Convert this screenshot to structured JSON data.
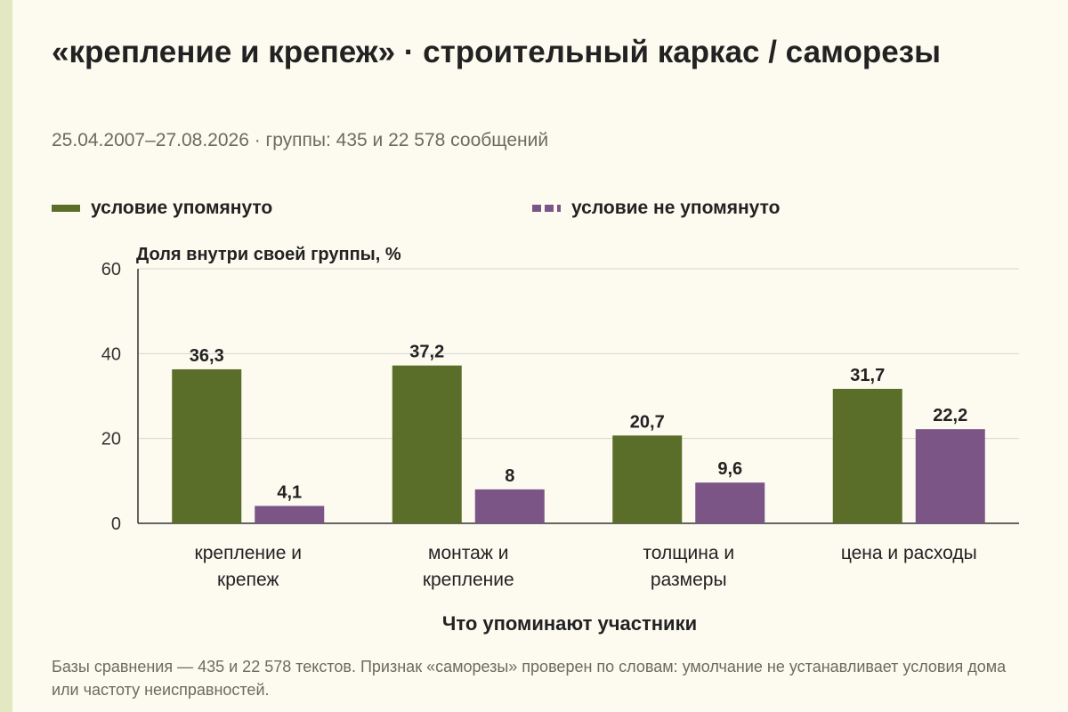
{
  "title": "«крепление и крепеж» · строительный каркас / саморезы",
  "subtitle": "25.04.2007–27.08.2026 · группы: 435 и 22 578 сообщений",
  "footnote": "Базы сравнения — 435 и 22 578 текстов. Признак «саморезы» проверен по словам: умолчание не устанавливает условия дома или частоту неисправностей.",
  "colors": {
    "background": "#fdfbf0",
    "series_1": "#5a6e29",
    "series_2": "#7a5585",
    "grid": "#d6d6cc"
  },
  "chart_data": {
    "type": "bar",
    "ylabel": "Доля внутри своей группы, %",
    "xlabel": "Что упоминают участники",
    "ylim": [
      0,
      60
    ],
    "yticks": [
      0,
      20,
      40,
      60
    ],
    "grid": true,
    "legend_position": "top",
    "categories": [
      [
        "крепление и",
        "крепеж"
      ],
      [
        "монтаж и",
        "крепление"
      ],
      [
        "толщина и",
        "размеры"
      ],
      [
        "цена и расходы"
      ]
    ],
    "series": [
      {
        "name": "условие упомянуто",
        "color": "#5a6e29",
        "style": "solid",
        "values": [
          36.3,
          37.2,
          20.7,
          31.7
        ],
        "labels": [
          "36,3",
          "37,2",
          "20,7",
          "31,7"
        ]
      },
      {
        "name": "условие не упомянуто",
        "color": "#7a5585",
        "style": "dashed",
        "values": [
          4.1,
          8,
          9.6,
          22.2
        ],
        "labels": [
          "4,1",
          "8",
          "9,6",
          "22,2"
        ]
      }
    ]
  }
}
